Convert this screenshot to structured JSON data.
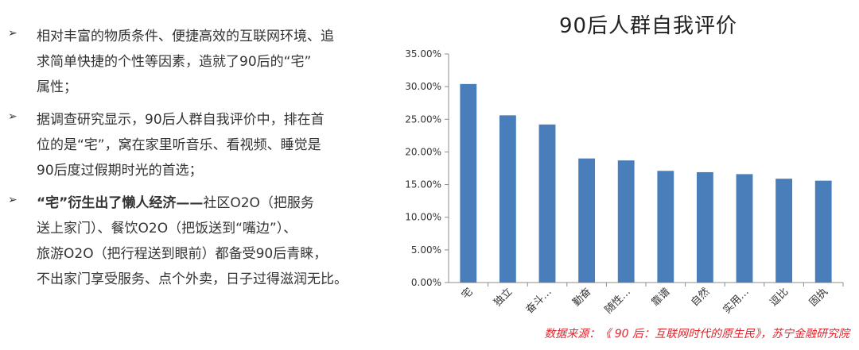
{
  "bullets": [
    {
      "lines": [
        "相对丰富的物质条件、便捷高效的互联网环境、追",
        "求简单快捷的个性等因素，造就了90后的“宅”",
        "属性；"
      ]
    },
    {
      "lines": [
        "据调查研究显示，90后人群自我评价中，排在首",
        "位的是“宅”，窝在家里听音乐、看视频、睡觉是",
        "90后度过假期时光的首选；"
      ]
    },
    {
      "bold_lead": "“宅”衍生出了懒人经济——",
      "first_rest": "社区O2O（把服务",
      "lines": [
        "送上家门）、餐饮O2O（把饭送到“嘴边”）、",
        "旅游O2O（把行程送到眼前）都备受90后青睐，",
        "不出家门享受服务、点个外卖，日子过得滋润无比。"
      ]
    }
  ],
  "bullet_marker": "➢",
  "source": "数据来源：《 90 后：互联网时代的原生民》，苏宁金融研究院",
  "colors": {
    "bar": "#4a7ebb",
    "source": "#e0242b"
  },
  "chart_data": {
    "type": "bar",
    "title": "90后人群自我评价",
    "categories": [
      "宅",
      "独立",
      "奋斗…",
      "勤奋",
      "随性…",
      "靠谱",
      "自然",
      "实用…",
      "逗比",
      "固执"
    ],
    "values": [
      30.4,
      25.6,
      24.2,
      19.0,
      18.7,
      17.1,
      16.9,
      16.6,
      15.9,
      15.6
    ],
    "ylim": [
      0,
      35
    ],
    "yticks": [
      "0.00%",
      "5.00%",
      "10.00%",
      "15.00%",
      "20.00%",
      "25.00%",
      "30.00%",
      "35.00%"
    ],
    "grid": false,
    "xlabel": "",
    "ylabel": ""
  }
}
